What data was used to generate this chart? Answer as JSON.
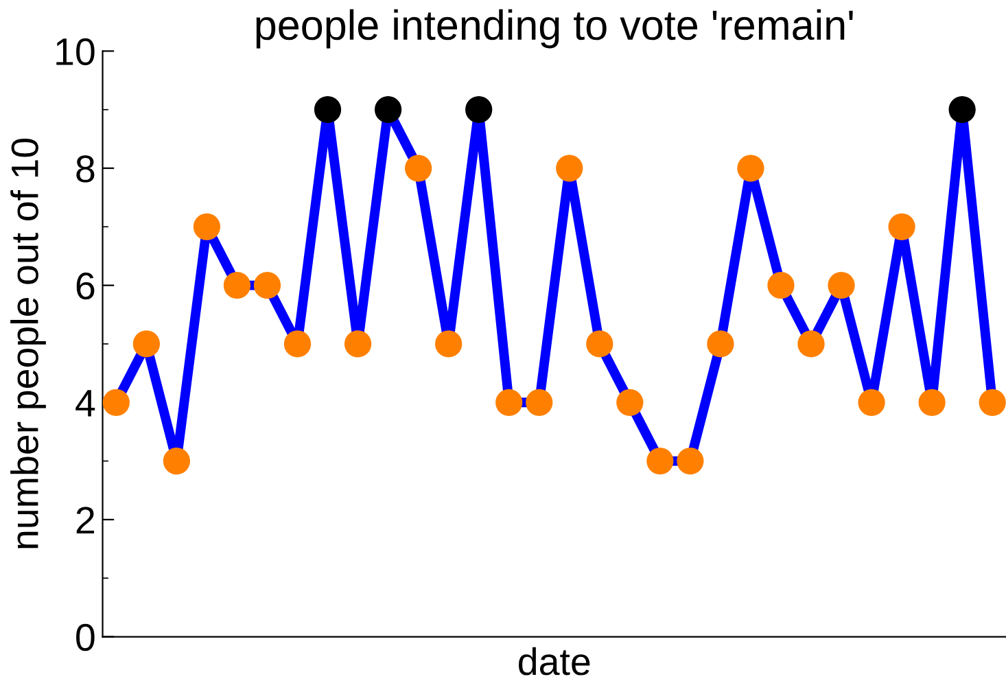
{
  "chart_data": {
    "type": "line",
    "title": "people intending to vote 'remain'",
    "xlabel": "date",
    "ylabel": "number people out of 10",
    "categories": [
      null,
      null,
      null,
      null,
      null,
      null,
      null,
      null,
      null,
      null,
      null,
      null,
      null,
      null,
      null,
      null,
      null,
      null,
      null,
      null,
      null,
      null,
      null,
      null,
      null,
      null,
      null,
      null,
      null,
      null
    ],
    "series": [
      {
        "color": "#0000ff",
        "values": [
          4,
          5,
          3,
          7,
          6,
          6,
          5,
          9,
          5,
          9,
          8,
          5,
          9,
          4,
          4,
          8,
          5,
          4,
          3,
          3,
          5,
          8,
          6,
          5,
          6,
          4,
          7,
          4,
          9,
          4
        ],
        "colors": [
          "#ff8000",
          "#ff8000",
          "#ff8000",
          "#ff8000",
          "#ff8000",
          "#ff8000",
          "#ff8000",
          "#000000",
          "#ff8000",
          "#000000",
          "#ff8000",
          "#ff8000",
          "#000000",
          "#ff8000",
          "#ff8000",
          "#ff8000",
          "#ff8000",
          "#ff8000",
          "#ff8000",
          "#ff8000",
          "#ff8000",
          "#ff8000",
          "#ff8000",
          "#ff8000",
          "#ff8000",
          "#ff8000",
          "#ff8000",
          "#ff8000",
          "#000000",
          "#ff8000"
        ]
      }
    ],
    "ylim": [
      0,
      10
    ],
    "yticks": [
      0,
      {
        "value": 1,
        "label": null
      },
      2,
      {
        "value": 3,
        "label": null
      },
      4,
      {
        "value": 5,
        "label": null
      },
      6,
      {
        "value": 7,
        "label": null
      },
      8,
      {
        "value": 9,
        "label": null
      },
      10
    ],
    "marker": "circle",
    "line_style": "solid",
    "grid": false,
    "legend": false
  }
}
